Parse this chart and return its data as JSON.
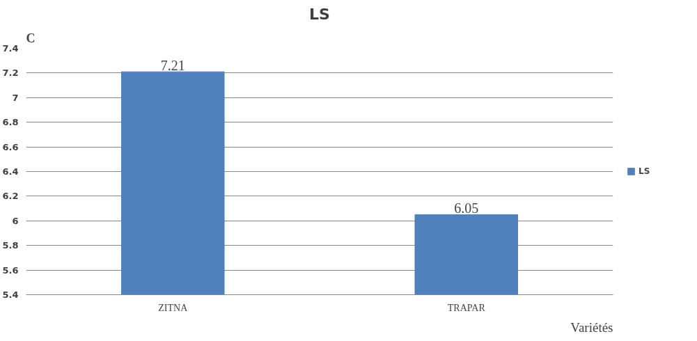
{
  "chart_data": {
    "type": "bar",
    "title": "LS",
    "xlabel": "Variétés",
    "annotations": [
      "C"
    ],
    "categories": [
      "ZITNA",
      "TRAPAR"
    ],
    "series": [
      {
        "name": "LS",
        "color": "#4f81bd",
        "values": [
          7.21,
          6.05
        ]
      }
    ],
    "ylim": [
      5.4,
      7.4
    ],
    "yticks": [
      5.4,
      5.6,
      5.8,
      6,
      6.2,
      6.4,
      6.6,
      6.8,
      7,
      7.2,
      7.4
    ],
    "grid": "y",
    "legend": "right",
    "data_labels": true
  }
}
